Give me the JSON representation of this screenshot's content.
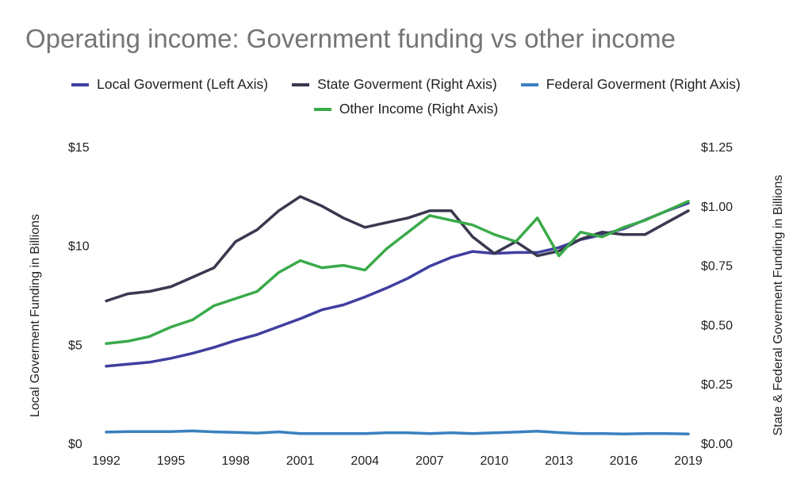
{
  "chart_data": {
    "type": "line",
    "title": "Operating income: Government funding vs other income",
    "x": [
      1992,
      1993,
      1994,
      1995,
      1996,
      1997,
      1998,
      1999,
      2000,
      2001,
      2002,
      2003,
      2004,
      2005,
      2006,
      2007,
      2008,
      2009,
      2010,
      2011,
      2012,
      2013,
      2014,
      2015,
      2016,
      2017,
      2018,
      2019
    ],
    "x_ticks": [
      "1992",
      "1995",
      "1998",
      "2001",
      "2004",
      "2007",
      "2010",
      "2013",
      "2016",
      "2019"
    ],
    "ylabel_left": "Local Goverment Funding in Billions",
    "ylabel_right": "State & Federal Goverment Funding in Billions",
    "ylim_left": [
      0,
      15
    ],
    "ylim_right": [
      0,
      1.25
    ],
    "y_ticks_left": [
      "$0",
      "$5",
      "$10",
      "$15"
    ],
    "y_ticks_right": [
      "$0.00",
      "$0.25",
      "$0.50",
      "$0.75",
      "$1.00",
      "$1.25"
    ],
    "grid": false,
    "legend_position": "top",
    "series": [
      {
        "name": "Local Goverment (Left Axis)",
        "axis": "left",
        "color": "#3f3fa0",
        "values": [
          3.9,
          4.0,
          4.1,
          4.3,
          4.55,
          4.85,
          5.2,
          5.5,
          5.9,
          6.3,
          6.75,
          7.0,
          7.4,
          7.85,
          8.35,
          8.95,
          9.4,
          9.7,
          9.6,
          9.65,
          9.65,
          9.9,
          10.3,
          10.55,
          10.85,
          11.3,
          11.75,
          12.15
        ]
      },
      {
        "name": "State Goverment (Right Axis)",
        "axis": "right",
        "color": "#383850",
        "values": [
          0.6,
          0.63,
          0.64,
          0.66,
          0.7,
          0.74,
          0.85,
          0.9,
          0.98,
          1.04,
          1.0,
          0.95,
          0.91,
          0.93,
          0.95,
          0.98,
          0.98,
          0.87,
          0.8,
          0.85,
          0.79,
          0.81,
          0.86,
          0.89,
          0.88,
          0.88,
          0.93,
          0.98
        ]
      },
      {
        "name": "Federal Goverment (Right Axis)",
        "axis": "right",
        "color": "#3a80c0",
        "values": [
          0.047,
          0.049,
          0.049,
          0.049,
          0.052,
          0.048,
          0.046,
          0.043,
          0.048,
          0.041,
          0.041,
          0.041,
          0.041,
          0.044,
          0.044,
          0.041,
          0.044,
          0.041,
          0.044,
          0.047,
          0.051,
          0.045,
          0.041,
          0.041,
          0.039,
          0.041,
          0.041,
          0.039
        ]
      },
      {
        "name": "Other Income (Right Axis)",
        "axis": "right",
        "color": "#3aaa4a",
        "values": [
          0.42,
          0.43,
          0.45,
          0.49,
          0.52,
          0.58,
          0.61,
          0.64,
          0.72,
          0.77,
          0.74,
          0.75,
          0.73,
          0.82,
          0.89,
          0.96,
          0.94,
          0.92,
          0.88,
          0.85,
          0.95,
          0.79,
          0.89,
          0.87,
          0.91,
          0.94,
          0.98,
          1.02
        ]
      }
    ]
  }
}
